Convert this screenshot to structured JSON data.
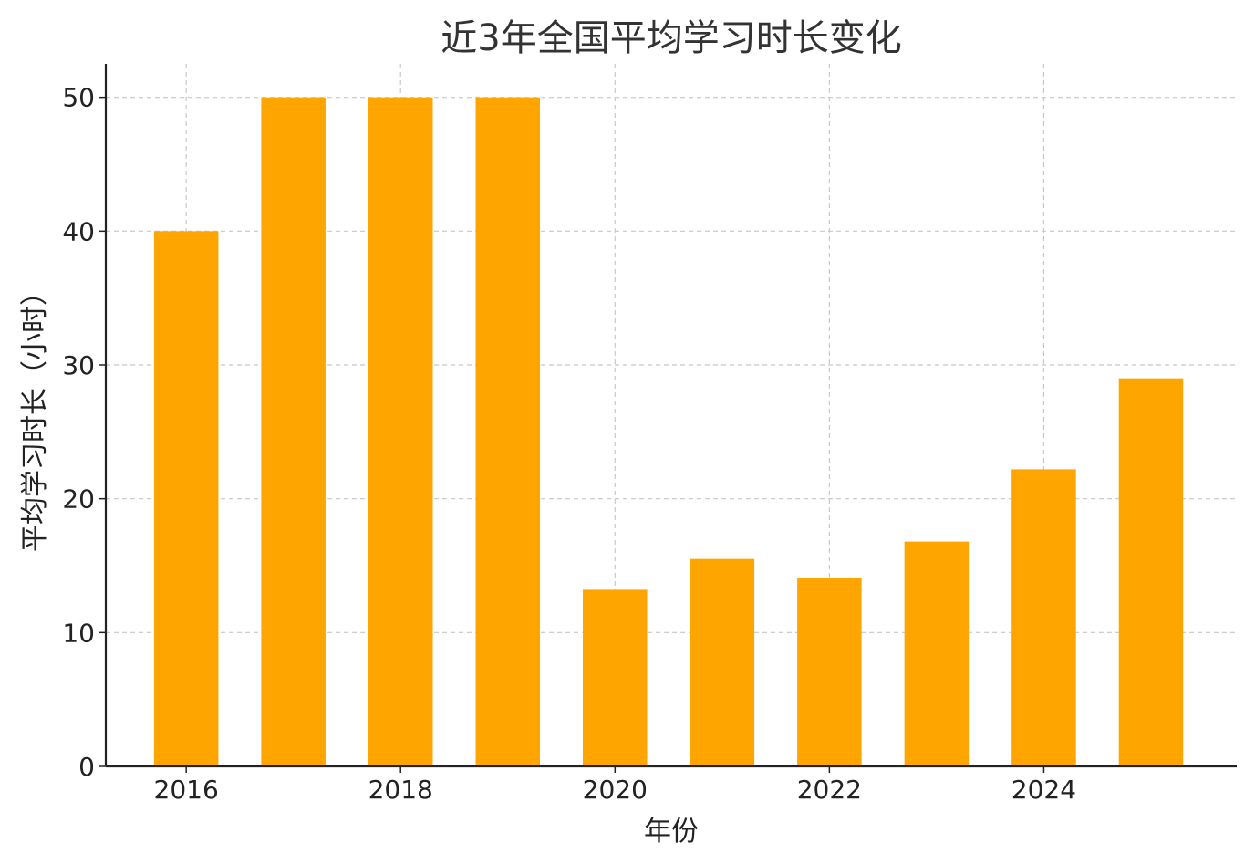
{
  "chart_data": {
    "type": "bar",
    "title": "近3年全国平均学习时长变化",
    "xlabel": "年份",
    "ylabel": "平均学习时长（小时）",
    "categories": [
      "2016",
      "2017",
      "2018",
      "2019",
      "2020",
      "2021",
      "2022",
      "2023",
      "2024",
      "2025"
    ],
    "x": [
      2016,
      2017,
      2018,
      2019,
      2020,
      2021,
      2022,
      2023,
      2024,
      2025
    ],
    "values": [
      40,
      50,
      50,
      50,
      13.2,
      15.5,
      14.1,
      16.8,
      22.2,
      29.0
    ],
    "xticks": [
      "2016",
      "2018",
      "2020",
      "2022",
      "2024"
    ],
    "xlim": [
      2015.25,
      2025.8
    ],
    "yticks": [
      "0",
      "10",
      "20",
      "30",
      "40",
      "50"
    ],
    "ylim": [
      0,
      52.5
    ],
    "grid": true,
    "bar_color": "#FFA500",
    "grid_color": "#c8c8c8"
  }
}
